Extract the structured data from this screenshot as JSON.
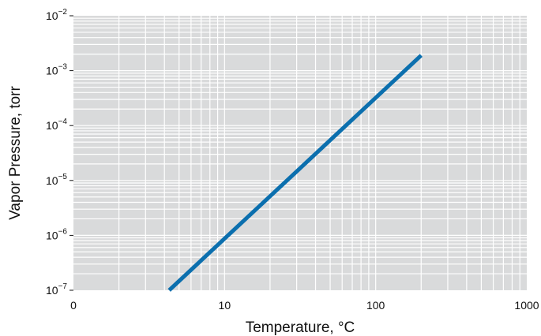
{
  "chart_data": {
    "type": "line",
    "title": "",
    "xlabel": "Temperature, °C",
    "ylabel": "Vapor Pressure, torr",
    "xscale": "log",
    "yscale": "log",
    "xlim": [
      1,
      1000
    ],
    "ylim": [
      1e-07,
      0.01
    ],
    "grid": true,
    "x_tick_labels": [
      {
        "value": 1,
        "label": "0"
      },
      {
        "value": 10,
        "label": "10"
      },
      {
        "value": 100,
        "label": "100"
      },
      {
        "value": 1000,
        "label": "1000"
      }
    ],
    "y_tick_labels": [
      {
        "value": 1e-07,
        "base": "10",
        "exp": "−7"
      },
      {
        "value": 1e-06,
        "base": "10",
        "exp": "−6"
      },
      {
        "value": 1e-05,
        "base": "10",
        "exp": "−5"
      },
      {
        "value": 0.0001,
        "base": "10",
        "exp": "−4"
      },
      {
        "value": 0.001,
        "base": "10",
        "exp": "−3"
      },
      {
        "value": 0.01,
        "base": "10",
        "exp": "−2"
      }
    ],
    "series": [
      {
        "color": "#0b6fae",
        "points": [
          {
            "x": 4.3,
            "y": 1e-07
          },
          {
            "x": 200,
            "y": 0.0019
          }
        ]
      }
    ]
  },
  "colors": {
    "plot_background": "#d9dadb",
    "grid": "#ffffff",
    "line": "#0b6fae"
  }
}
